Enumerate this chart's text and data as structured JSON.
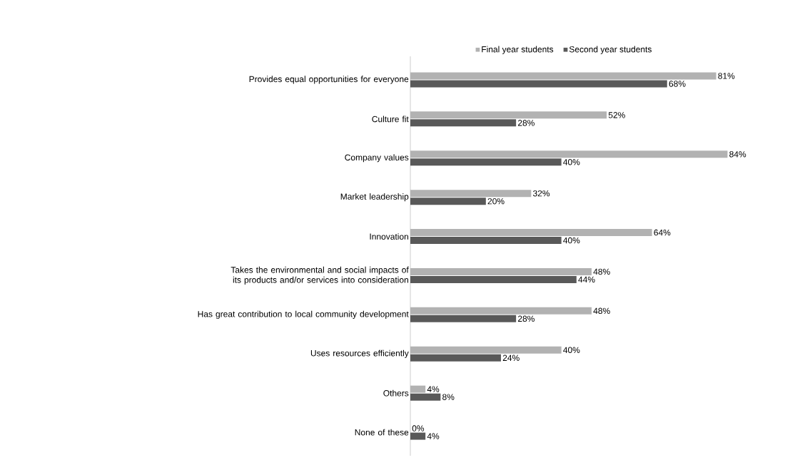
{
  "chart_data": {
    "type": "bar",
    "orientation": "horizontal",
    "relative": false,
    "data_labels": false,
    "legend": "top",
    "categories": [
      "Provides equal opportunities for everyone",
      "Culture fit",
      "Company values",
      "Market leadership",
      "Innovation",
      "Takes the environmental and social impacts of its products and/or services into consideration",
      "Has great contribution to local community development",
      "Uses resources efficiently",
      "Others",
      "None of these"
    ],
    "series": [
      {
        "name": "Final year students",
        "color": "#b2b2b2",
        "values": [
          81,
          52,
          84,
          32,
          64,
          48,
          48,
          40,
          4,
          0
        ],
        "value_labels": [
          "81%",
          "52%",
          "84%",
          "32%",
          "64%",
          "48%",
          "48%",
          "40%",
          "4%",
          "0%"
        ]
      },
      {
        "name": "Second year students",
        "color": "#595959",
        "values": [
          68,
          28,
          40,
          20,
          40,
          44,
          28,
          24,
          8,
          4
        ],
        "value_labels": [
          "68%",
          "28%",
          "40%",
          "20%",
          "40%",
          "44%",
          "28%",
          "24%",
          "8%",
          "4%"
        ]
      }
    ]
  }
}
